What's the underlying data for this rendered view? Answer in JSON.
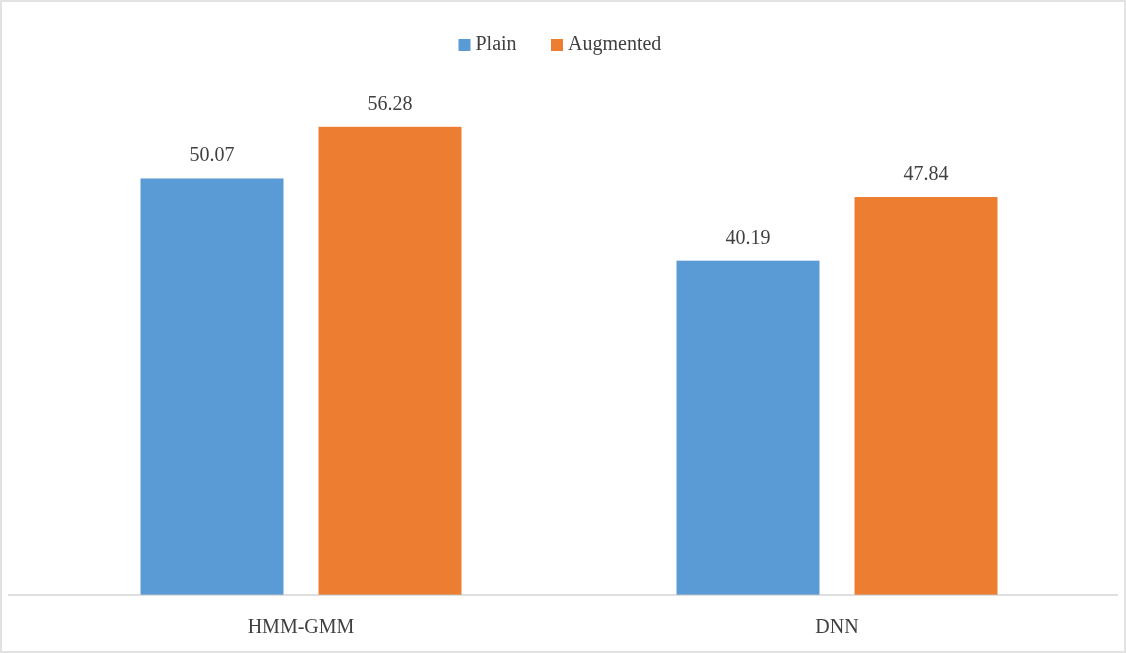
{
  "chart_data": {
    "type": "bar",
    "categories": [
      "HMM-GMM",
      "DNN"
    ],
    "series": [
      {
        "name": "Plain",
        "color": "#5b9bd5",
        "values": [
          50.07,
          40.19
        ]
      },
      {
        "name": "Augmented",
        "color": "#ed7d31",
        "values": [
          56.28,
          47.84
        ]
      }
    ],
    "data_labels": true,
    "legend": "top",
    "grid": false
  }
}
